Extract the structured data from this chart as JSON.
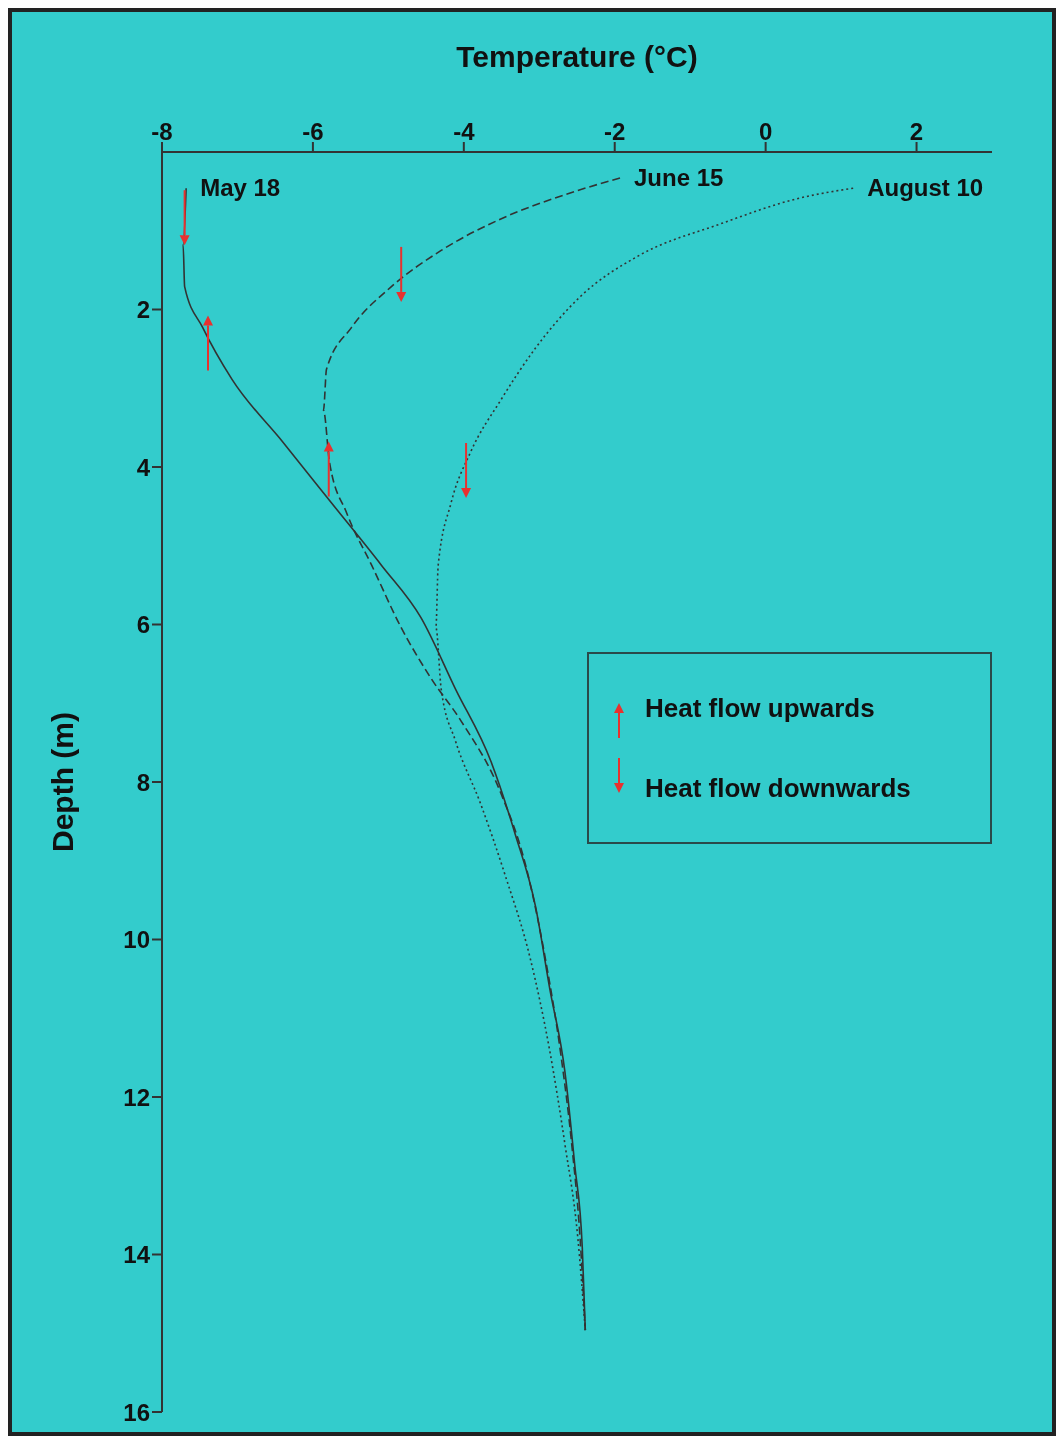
{
  "chart_data": {
    "type": "line",
    "xlabel": "Temperature (°C)",
    "ylabel": "Depth (m)",
    "xlim": [
      -8,
      3
    ],
    "xticks": [
      -8,
      -6,
      -4,
      -2,
      0,
      2
    ],
    "ylim": [
      16,
      0
    ],
    "yticks": [
      2,
      4,
      6,
      8,
      10,
      12,
      14,
      16
    ],
    "grid": false,
    "legend": "right",
    "marker": "none",
    "series": [
      {
        "name": "May 18",
        "line_style": "solid",
        "color": "#333333",
        "x": [
          -7.68,
          -7.72,
          -7.7,
          -7.46,
          -7.07,
          -6.41,
          -5.75,
          -5.09,
          -4.57,
          -4.11,
          -3.64,
          -3.32,
          -3.05,
          -2.86,
          -2.66,
          -2.53,
          -2.43,
          -2.39
        ],
        "values": [
          0.46,
          1.18,
          1.71,
          2.23,
          2.89,
          3.67,
          4.46,
          5.25,
          5.91,
          6.82,
          7.74,
          8.66,
          9.58,
          10.63,
          11.68,
          12.86,
          13.91,
          14.96
        ]
      },
      {
        "name": "June 15",
        "line_style": "dashed",
        "color": "#333333",
        "x": [
          -1.93,
          -2.59,
          -3.51,
          -4.3,
          -4.96,
          -5.49,
          -5.82,
          -5.86,
          -5.78,
          -5.55,
          -5.22,
          -4.83,
          -4.43,
          -4.04,
          -3.51,
          -3.18,
          -2.92,
          -2.72,
          -2.57,
          -2.46,
          -2.39
        ],
        "values": [
          0.33,
          0.52,
          0.85,
          1.25,
          1.71,
          2.23,
          2.76,
          3.28,
          3.94,
          4.59,
          5.25,
          6.04,
          6.69,
          7.22,
          8.14,
          9.06,
          10.24,
          11.42,
          12.6,
          13.78,
          14.96
        ]
      },
      {
        "name": "August 10",
        "line_style": "dotted",
        "color": "#333333",
        "x": [
          1.16,
          0.43,
          -0.62,
          -1.67,
          -2.46,
          -3.05,
          -3.51,
          -3.91,
          -4.17,
          -4.34,
          -4.37,
          -4.3,
          -4.11,
          -3.78,
          -3.45,
          -3.12,
          -2.86,
          -2.66,
          -2.49,
          -2.39
        ],
        "values": [
          0.46,
          0.59,
          0.92,
          1.31,
          1.84,
          2.49,
          3.15,
          3.81,
          4.46,
          5.25,
          6.04,
          6.82,
          7.48,
          8.27,
          9.19,
          10.24,
          11.42,
          12.6,
          13.78,
          14.96
        ]
      },
      {
        "name": "Heat flow upwards",
        "type": "scatter",
        "marker": "triangle",
        "color": "#e8312f",
        "x": [
          -7.39,
          -5.79
        ],
        "values": [
          2.14,
          3.74
        ]
      },
      {
        "name": "Heat flow downwards",
        "type": "scatter",
        "marker": "triangle",
        "color": "#e8312f",
        "x": [
          -7.7,
          -4.83,
          -3.97
        ],
        "values": [
          1.12,
          1.84,
          4.33
        ]
      }
    ]
  }
}
